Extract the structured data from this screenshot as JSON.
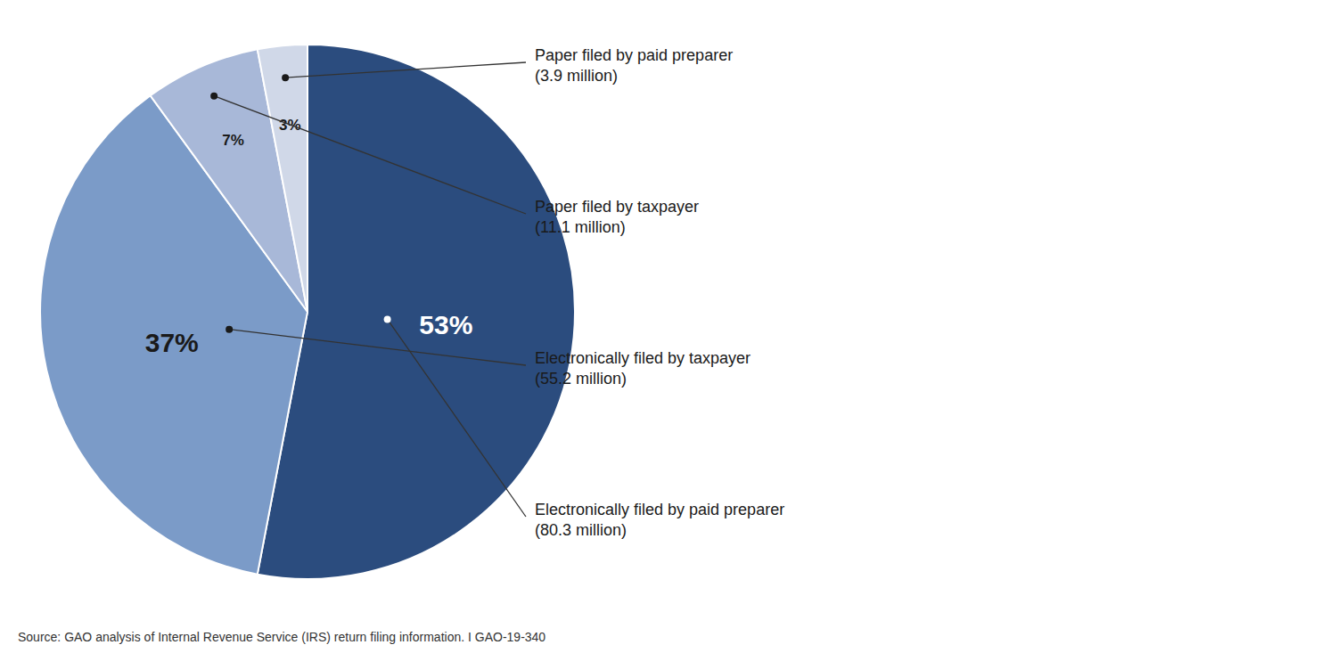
{
  "chart_data": {
    "type": "pie",
    "categories": [
      "Electronically filed by paid preparer\n(80.3 million)",
      "Electronically filed by taxpayer\n(55.2 million)",
      "Paper filed by taxpayer\n(11.1 million)",
      "Paper filed by paid preparer\n(3.9 million)"
    ],
    "values": [
      53,
      37,
      7,
      3
    ],
    "value_labels": [
      "53%",
      "37%",
      "7%",
      "3%"
    ],
    "colors": [
      "#2B4C7E",
      "#7B9BC8",
      "#A8B8D8",
      "#D0D8E8"
    ],
    "data_labels": true,
    "source": "Source: GAO analysis of Internal Revenue Service (IRS) return filing information.  I  GAO-19-340"
  }
}
